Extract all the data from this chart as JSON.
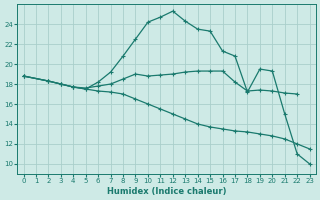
{
  "xlabel": "Humidex (Indice chaleur)",
  "xlim": [
    -0.5,
    23.5
  ],
  "ylim": [
    9,
    26
  ],
  "yticks": [
    10,
    12,
    14,
    16,
    18,
    20,
    22,
    24
  ],
  "xticks": [
    0,
    1,
    2,
    3,
    4,
    5,
    6,
    7,
    8,
    9,
    10,
    11,
    12,
    13,
    14,
    15,
    16,
    17,
    18,
    19,
    20,
    21,
    22,
    23
  ],
  "background_color": "#ceeae6",
  "grid_color": "#aacfcb",
  "line_color": "#1a7a6e",
  "lines": [
    {
      "x": [
        0,
        2,
        3,
        4,
        5,
        6,
        7,
        8,
        9,
        10,
        11,
        12,
        13,
        14,
        15,
        16,
        17,
        18,
        19,
        20,
        21,
        22,
        23
      ],
      "y": [
        18.8,
        18.3,
        18.0,
        17.7,
        17.5,
        18.2,
        19.2,
        20.8,
        22.5,
        24.2,
        24.7,
        25.3,
        24.3,
        23.5,
        23.3,
        21.3,
        20.8,
        17.2,
        19.5,
        19.3,
        15.0,
        11.0,
        10.0
      ]
    },
    {
      "x": [
        0,
        2,
        3,
        4,
        5,
        6,
        7,
        8,
        9,
        10,
        11,
        12,
        13,
        14,
        15,
        16,
        17,
        18,
        19,
        20,
        21,
        22
      ],
      "y": [
        18.8,
        18.3,
        18.0,
        17.7,
        17.6,
        17.8,
        18.0,
        18.5,
        19.0,
        18.8,
        18.9,
        19.0,
        19.2,
        19.3,
        19.3,
        19.3,
        18.2,
        17.3,
        17.4,
        17.3,
        17.1,
        17.0
      ]
    },
    {
      "x": [
        0,
        2,
        3,
        4,
        5,
        6,
        7,
        8,
        9,
        10,
        11,
        12,
        13,
        14,
        15,
        16,
        17,
        18,
        19,
        20,
        21,
        22,
        23
      ],
      "y": [
        18.8,
        18.3,
        18.0,
        17.7,
        17.5,
        17.3,
        17.2,
        17.0,
        16.5,
        16.0,
        15.5,
        15.0,
        14.5,
        14.0,
        13.7,
        13.5,
        13.3,
        13.2,
        13.0,
        12.8,
        12.5,
        12.0,
        11.5
      ]
    }
  ]
}
